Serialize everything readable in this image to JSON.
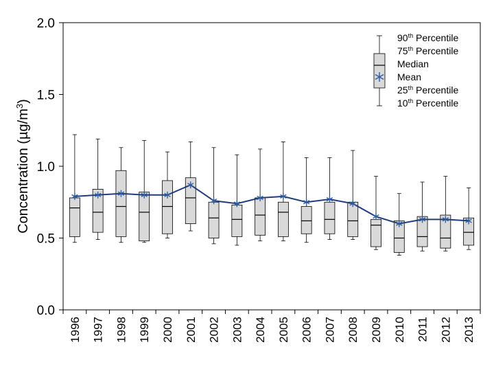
{
  "chart_data": {
    "type": "boxplot",
    "title": "",
    "xlabel": "",
    "ylabel": "Concentration (µg/m³)",
    "ylabel_parts": {
      "main": "Concentration (",
      "mu": "µ",
      "unit": "g/m",
      "sup": "3",
      "close": ")"
    },
    "ylim": [
      0,
      2.0
    ],
    "yticks": [
      0.0,
      0.5,
      1.0,
      1.5,
      2.0
    ],
    "ytick_labels": [
      "0.0",
      "0.5",
      "1.0",
      "1.5",
      "2.0"
    ],
    "categories": [
      "1996",
      "1997",
      "1998",
      "1999",
      "2000",
      "2001",
      "2002",
      "2003",
      "2004",
      "2005",
      "2006",
      "2007",
      "2008",
      "2009",
      "2010",
      "2011",
      "2012",
      "2013"
    ],
    "series": {
      "p90": [
        1.22,
        1.19,
        1.13,
        1.18,
        1.1,
        1.17,
        1.13,
        1.08,
        1.12,
        1.17,
        1.06,
        1.06,
        1.11,
        0.93,
        0.81,
        0.89,
        0.93,
        0.85
      ],
      "p75": [
        0.78,
        0.84,
        0.97,
        0.82,
        0.9,
        0.92,
        0.75,
        0.73,
        0.78,
        0.75,
        0.72,
        0.75,
        0.75,
        0.63,
        0.62,
        0.65,
        0.66,
        0.64
      ],
      "median": [
        0.71,
        0.68,
        0.72,
        0.68,
        0.72,
        0.78,
        0.64,
        0.63,
        0.66,
        0.68,
        0.62,
        0.63,
        0.62,
        0.59,
        0.5,
        0.51,
        0.5,
        0.54
      ],
      "p25": [
        0.51,
        0.54,
        0.51,
        0.48,
        0.53,
        0.6,
        0.5,
        0.51,
        0.52,
        0.51,
        0.53,
        0.53,
        0.51,
        0.44,
        0.4,
        0.44,
        0.43,
        0.45
      ],
      "p10": [
        0.47,
        0.49,
        0.47,
        0.47,
        0.5,
        0.55,
        0.46,
        0.45,
        0.48,
        0.48,
        0.47,
        0.49,
        0.49,
        0.42,
        0.38,
        0.41,
        0.41,
        0.42
      ],
      "mean": [
        0.79,
        0.8,
        0.81,
        0.8,
        0.8,
        0.87,
        0.76,
        0.74,
        0.78,
        0.79,
        0.75,
        0.77,
        0.74,
        0.65,
        0.6,
        0.63,
        0.63,
        0.62
      ]
    },
    "legend": {
      "position": "top-right",
      "items": [
        {
          "base": "90",
          "sup": "th",
          "rest": " Percentile"
        },
        {
          "base": "75",
          "sup": "th",
          "rest": " Percentile"
        },
        {
          "base": "Median",
          "sup": "",
          "rest": ""
        },
        {
          "base": "Mean",
          "sup": "",
          "rest": ""
        },
        {
          "base": "25",
          "sup": "th",
          "rest": " Percentile"
        },
        {
          "base": "10",
          "sup": "th",
          "rest": " Percentile"
        }
      ]
    },
    "colors": {
      "box_fill": "#d9d9d9",
      "box_stroke": "#000000",
      "mean_line": "#1f3d7a",
      "mean_marker": "#2e5c9e",
      "axis": "#000000"
    }
  }
}
